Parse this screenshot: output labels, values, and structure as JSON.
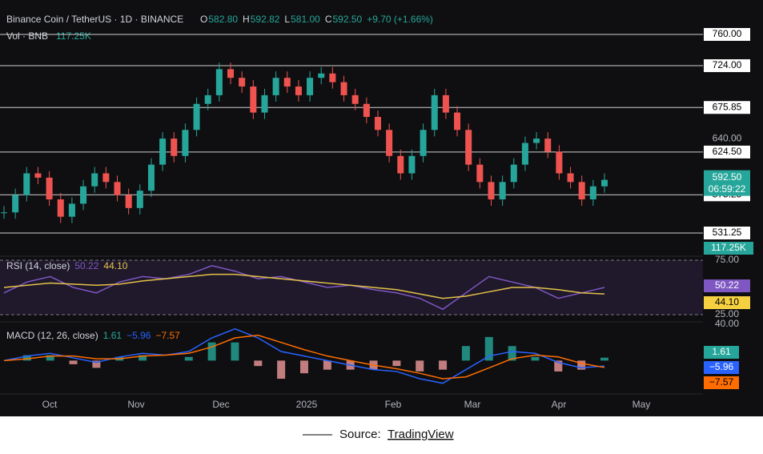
{
  "header": {
    "symbol": "Binance Coin / TetherUS · 1D · BINANCE",
    "open_label": "O",
    "open": "582.80",
    "high_label": "H",
    "high": "592.82",
    "low_label": "L",
    "low": "581.00",
    "close_label": "C",
    "close": "592.50",
    "change": "+9.70 (+1.66%)",
    "volume": "Vol · BNB",
    "volume_value": "117.25K"
  },
  "levels": [
    {
      "value": 760,
      "label": "760.00"
    },
    {
      "value": 724,
      "label": "724.00"
    },
    {
      "value": 675.85,
      "label": "675.85"
    },
    {
      "value": 624.5,
      "label": "624.50"
    },
    {
      "value": 575.25,
      "label": "575.25"
    },
    {
      "value": 531.25,
      "label": "531.25"
    }
  ],
  "axis_ticks": [
    {
      "value": 640,
      "label": "640.00"
    }
  ],
  "last_price": {
    "value": 592.5,
    "label": "592.50",
    "countdown": "06:59:22"
  },
  "volume_tag": "117.25K",
  "closes": [
    555,
    575,
    600,
    595,
    570,
    550,
    565,
    585,
    600,
    590,
    575,
    560,
    580,
    610,
    640,
    620,
    650,
    680,
    690,
    720,
    710,
    700,
    670,
    690,
    710,
    700,
    690,
    710,
    715,
    705,
    690,
    680,
    665,
    650,
    620,
    600,
    620,
    650,
    690,
    670,
    650,
    610,
    590,
    570,
    590,
    610,
    635,
    640,
    625,
    600,
    590,
    570,
    585,
    592.5
  ],
  "rsi": {
    "title": "RSI (14, close)",
    "rsi": "50.22",
    "ma": "44.10",
    "upper": {
      "value": 75,
      "label": "75.00"
    },
    "lower": {
      "value": 25,
      "label": "25.00"
    },
    "values": [
      45,
      55,
      60,
      50,
      45,
      55,
      60,
      58,
      62,
      70,
      65,
      58,
      60,
      55,
      50,
      52,
      48,
      45,
      40,
      30,
      45,
      60,
      55,
      50,
      40,
      45,
      50
    ],
    "ma_values": [
      50,
      52,
      54,
      53,
      52,
      53,
      56,
      58,
      60,
      62,
      62,
      60,
      58,
      56,
      54,
      52,
      50,
      48,
      44,
      40,
      42,
      46,
      50,
      50,
      48,
      45,
      44
    ]
  },
  "macd": {
    "title": "MACD (12, 26, close)",
    "hist": "1.61",
    "macd": "−5.96",
    "signal": "−7.57",
    "top": {
      "value": 40,
      "label": "40.00"
    },
    "ylim": [
      -35,
      40
    ],
    "macd_values": [
      0,
      5,
      8,
      3,
      -2,
      4,
      8,
      6,
      10,
      25,
      35,
      25,
      10,
      5,
      0,
      -5,
      -10,
      -12,
      -20,
      -25,
      -10,
      5,
      10,
      8,
      -2,
      -8,
      -6
    ],
    "signal_values": [
      0,
      2,
      5,
      5,
      2,
      2,
      5,
      6,
      8,
      15,
      25,
      28,
      20,
      12,
      5,
      0,
      -5,
      -9,
      -14,
      -20,
      -18,
      -8,
      2,
      6,
      4,
      -3,
      -7.6
    ]
  },
  "time_axis": [
    "Oct",
    "Nov",
    "Dec",
    "2025",
    "Feb",
    "Mar",
    "Apr",
    "May"
  ],
  "footer": {
    "prefix": "Source:",
    "link": "TradingView"
  }
}
